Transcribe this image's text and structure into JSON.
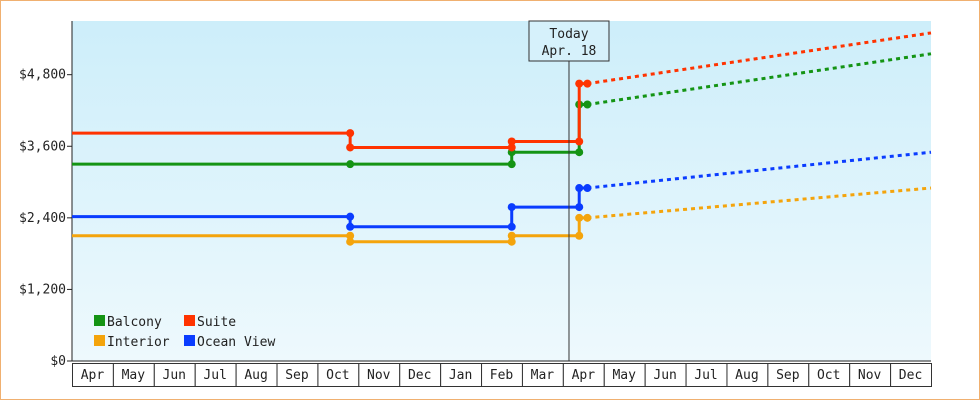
{
  "chart_data": {
    "type": "line",
    "title": "",
    "xlabel": "",
    "ylabel": "",
    "step": true,
    "ylim": [
      0,
      5700
    ],
    "x_tick_labels": [
      "Apr",
      "May",
      "Jun",
      "Jul",
      "Aug",
      "Sep",
      "Oct",
      "Nov",
      "Dec",
      "Jan",
      "Feb",
      "Mar",
      "Apr",
      "May",
      "Jun",
      "Jul",
      "Aug",
      "Sep",
      "Oct",
      "Nov",
      "Dec"
    ],
    "y_ticks": [
      {
        "value": 0,
        "label": "$0"
      },
      {
        "value": 1200,
        "label": "$1,200"
      },
      {
        "value": 2400,
        "label": "$2,400"
      },
      {
        "value": 3600,
        "label": "$3,600"
      },
      {
        "value": 4800,
        "label": "$4,800"
      }
    ],
    "xlim": [
      0,
      21
    ],
    "today": {
      "x": 12.15,
      "label_line1": "Today",
      "label_line2": "Apr. 18"
    },
    "legend": {
      "position": "bottom-left",
      "columns": 2
    },
    "grid": false,
    "background_gradient": [
      "#cdeefa",
      "#eef9fd"
    ],
    "series": [
      {
        "name": "Balcony",
        "color": "#149414",
        "points": [
          [
            0,
            3300
          ],
          [
            6.8,
            3300
          ],
          [
            10.75,
            3300
          ],
          [
            10.75,
            3500
          ],
          [
            12.4,
            3500
          ],
          [
            12.4,
            4300
          ],
          [
            12.6,
            4300
          ]
        ],
        "markers": [
          [
            6.8,
            3300
          ],
          [
            10.75,
            3300
          ],
          [
            10.75,
            3500
          ],
          [
            12.4,
            3500
          ],
          [
            12.4,
            4300
          ],
          [
            12.6,
            4300
          ]
        ],
        "projection": [
          [
            12.6,
            4300
          ],
          [
            21,
            5150
          ]
        ]
      },
      {
        "name": "Suite",
        "color": "#ff3300",
        "points": [
          [
            0,
            3820
          ],
          [
            6.8,
            3820
          ],
          [
            6.8,
            3580
          ],
          [
            10.75,
            3580
          ],
          [
            10.75,
            3680
          ],
          [
            12.4,
            3680
          ],
          [
            12.4,
            4650
          ],
          [
            12.6,
            4650
          ]
        ],
        "markers": [
          [
            6.8,
            3820
          ],
          [
            6.8,
            3580
          ],
          [
            10.75,
            3580
          ],
          [
            10.75,
            3680
          ],
          [
            12.4,
            3680
          ],
          [
            12.4,
            4650
          ],
          [
            12.6,
            4650
          ]
        ],
        "projection": [
          [
            12.6,
            4650
          ],
          [
            21,
            5500
          ]
        ]
      },
      {
        "name": "Interior",
        "color": "#f4a40c",
        "points": [
          [
            0,
            2100
          ],
          [
            6.8,
            2100
          ],
          [
            6.8,
            2000
          ],
          [
            10.75,
            2000
          ],
          [
            10.75,
            2100
          ],
          [
            12.4,
            2100
          ],
          [
            12.4,
            2400
          ],
          [
            12.6,
            2400
          ]
        ],
        "markers": [
          [
            6.8,
            2100
          ],
          [
            6.8,
            2000
          ],
          [
            10.75,
            2000
          ],
          [
            10.75,
            2100
          ],
          [
            12.4,
            2100
          ],
          [
            12.4,
            2400
          ],
          [
            12.6,
            2400
          ]
        ],
        "projection": [
          [
            12.6,
            2400
          ],
          [
            21,
            2900
          ]
        ]
      },
      {
        "name": "Ocean View",
        "color": "#0a3cff",
        "points": [
          [
            0,
            2420
          ],
          [
            6.8,
            2420
          ],
          [
            6.8,
            2250
          ],
          [
            10.75,
            2250
          ],
          [
            10.75,
            2580
          ],
          [
            12.4,
            2580
          ],
          [
            12.4,
            2900
          ],
          [
            12.6,
            2900
          ]
        ],
        "markers": [
          [
            6.8,
            2420
          ],
          [
            6.8,
            2250
          ],
          [
            10.75,
            2250
          ],
          [
            10.75,
            2580
          ],
          [
            12.4,
            2580
          ],
          [
            12.4,
            2900
          ],
          [
            12.6,
            2900
          ]
        ],
        "projection": [
          [
            12.6,
            2900
          ],
          [
            21,
            3500
          ]
        ]
      }
    ]
  }
}
